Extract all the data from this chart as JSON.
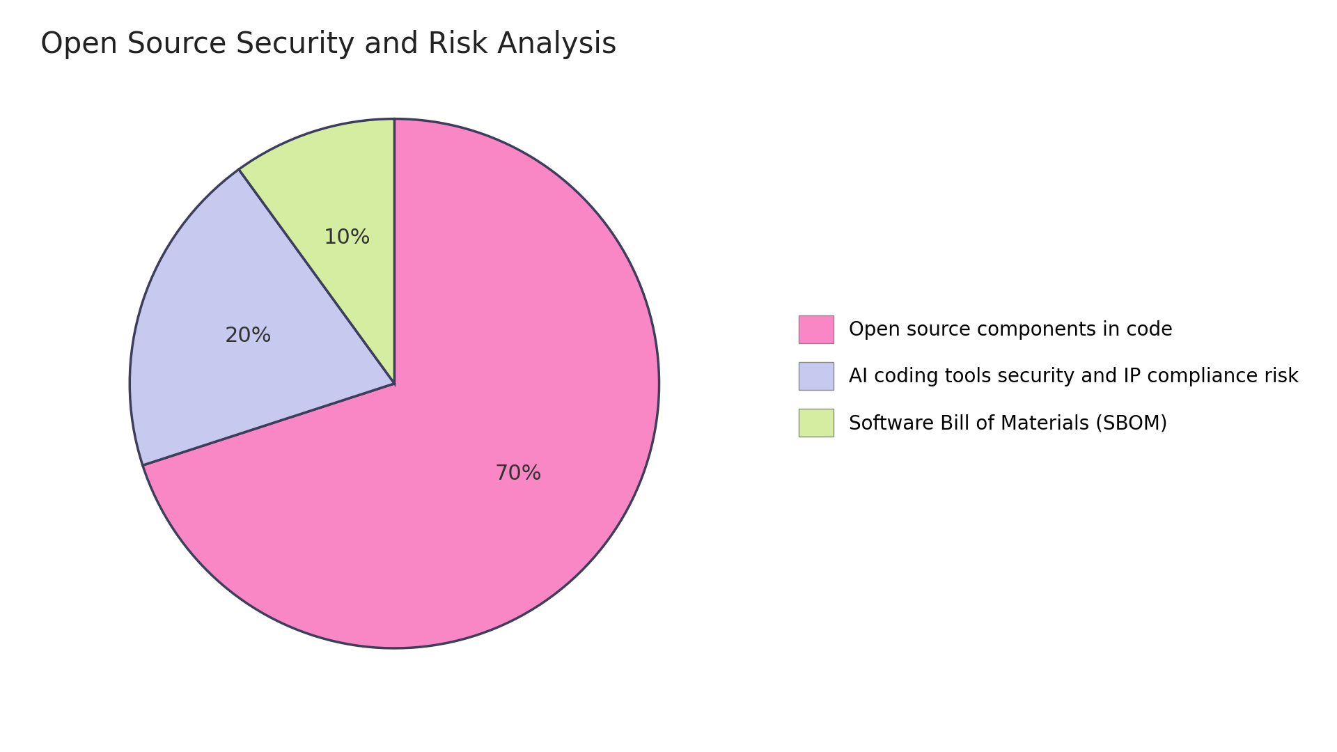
{
  "title": "Open Source Security and Risk Analysis",
  "slices": [
    70,
    20,
    10
  ],
  "labels": [
    "Open source components in code",
    "AI coding tools security and IP compliance risk",
    "Software Bill of Materials (SBOM)"
  ],
  "colors": [
    "#F987C5",
    "#C5CAEE",
    "#D4EDA0"
  ],
  "edge_color": "#3d3d5c",
  "edge_linewidth": 2.5,
  "pct_labels": [
    "70%",
    "20%",
    "10%"
  ],
  "startangle": 90,
  "title_fontsize": 30,
  "pct_fontsize": 22,
  "legend_fontsize": 20,
  "background_color": "#ffffff",
  "text_color": "#333333"
}
